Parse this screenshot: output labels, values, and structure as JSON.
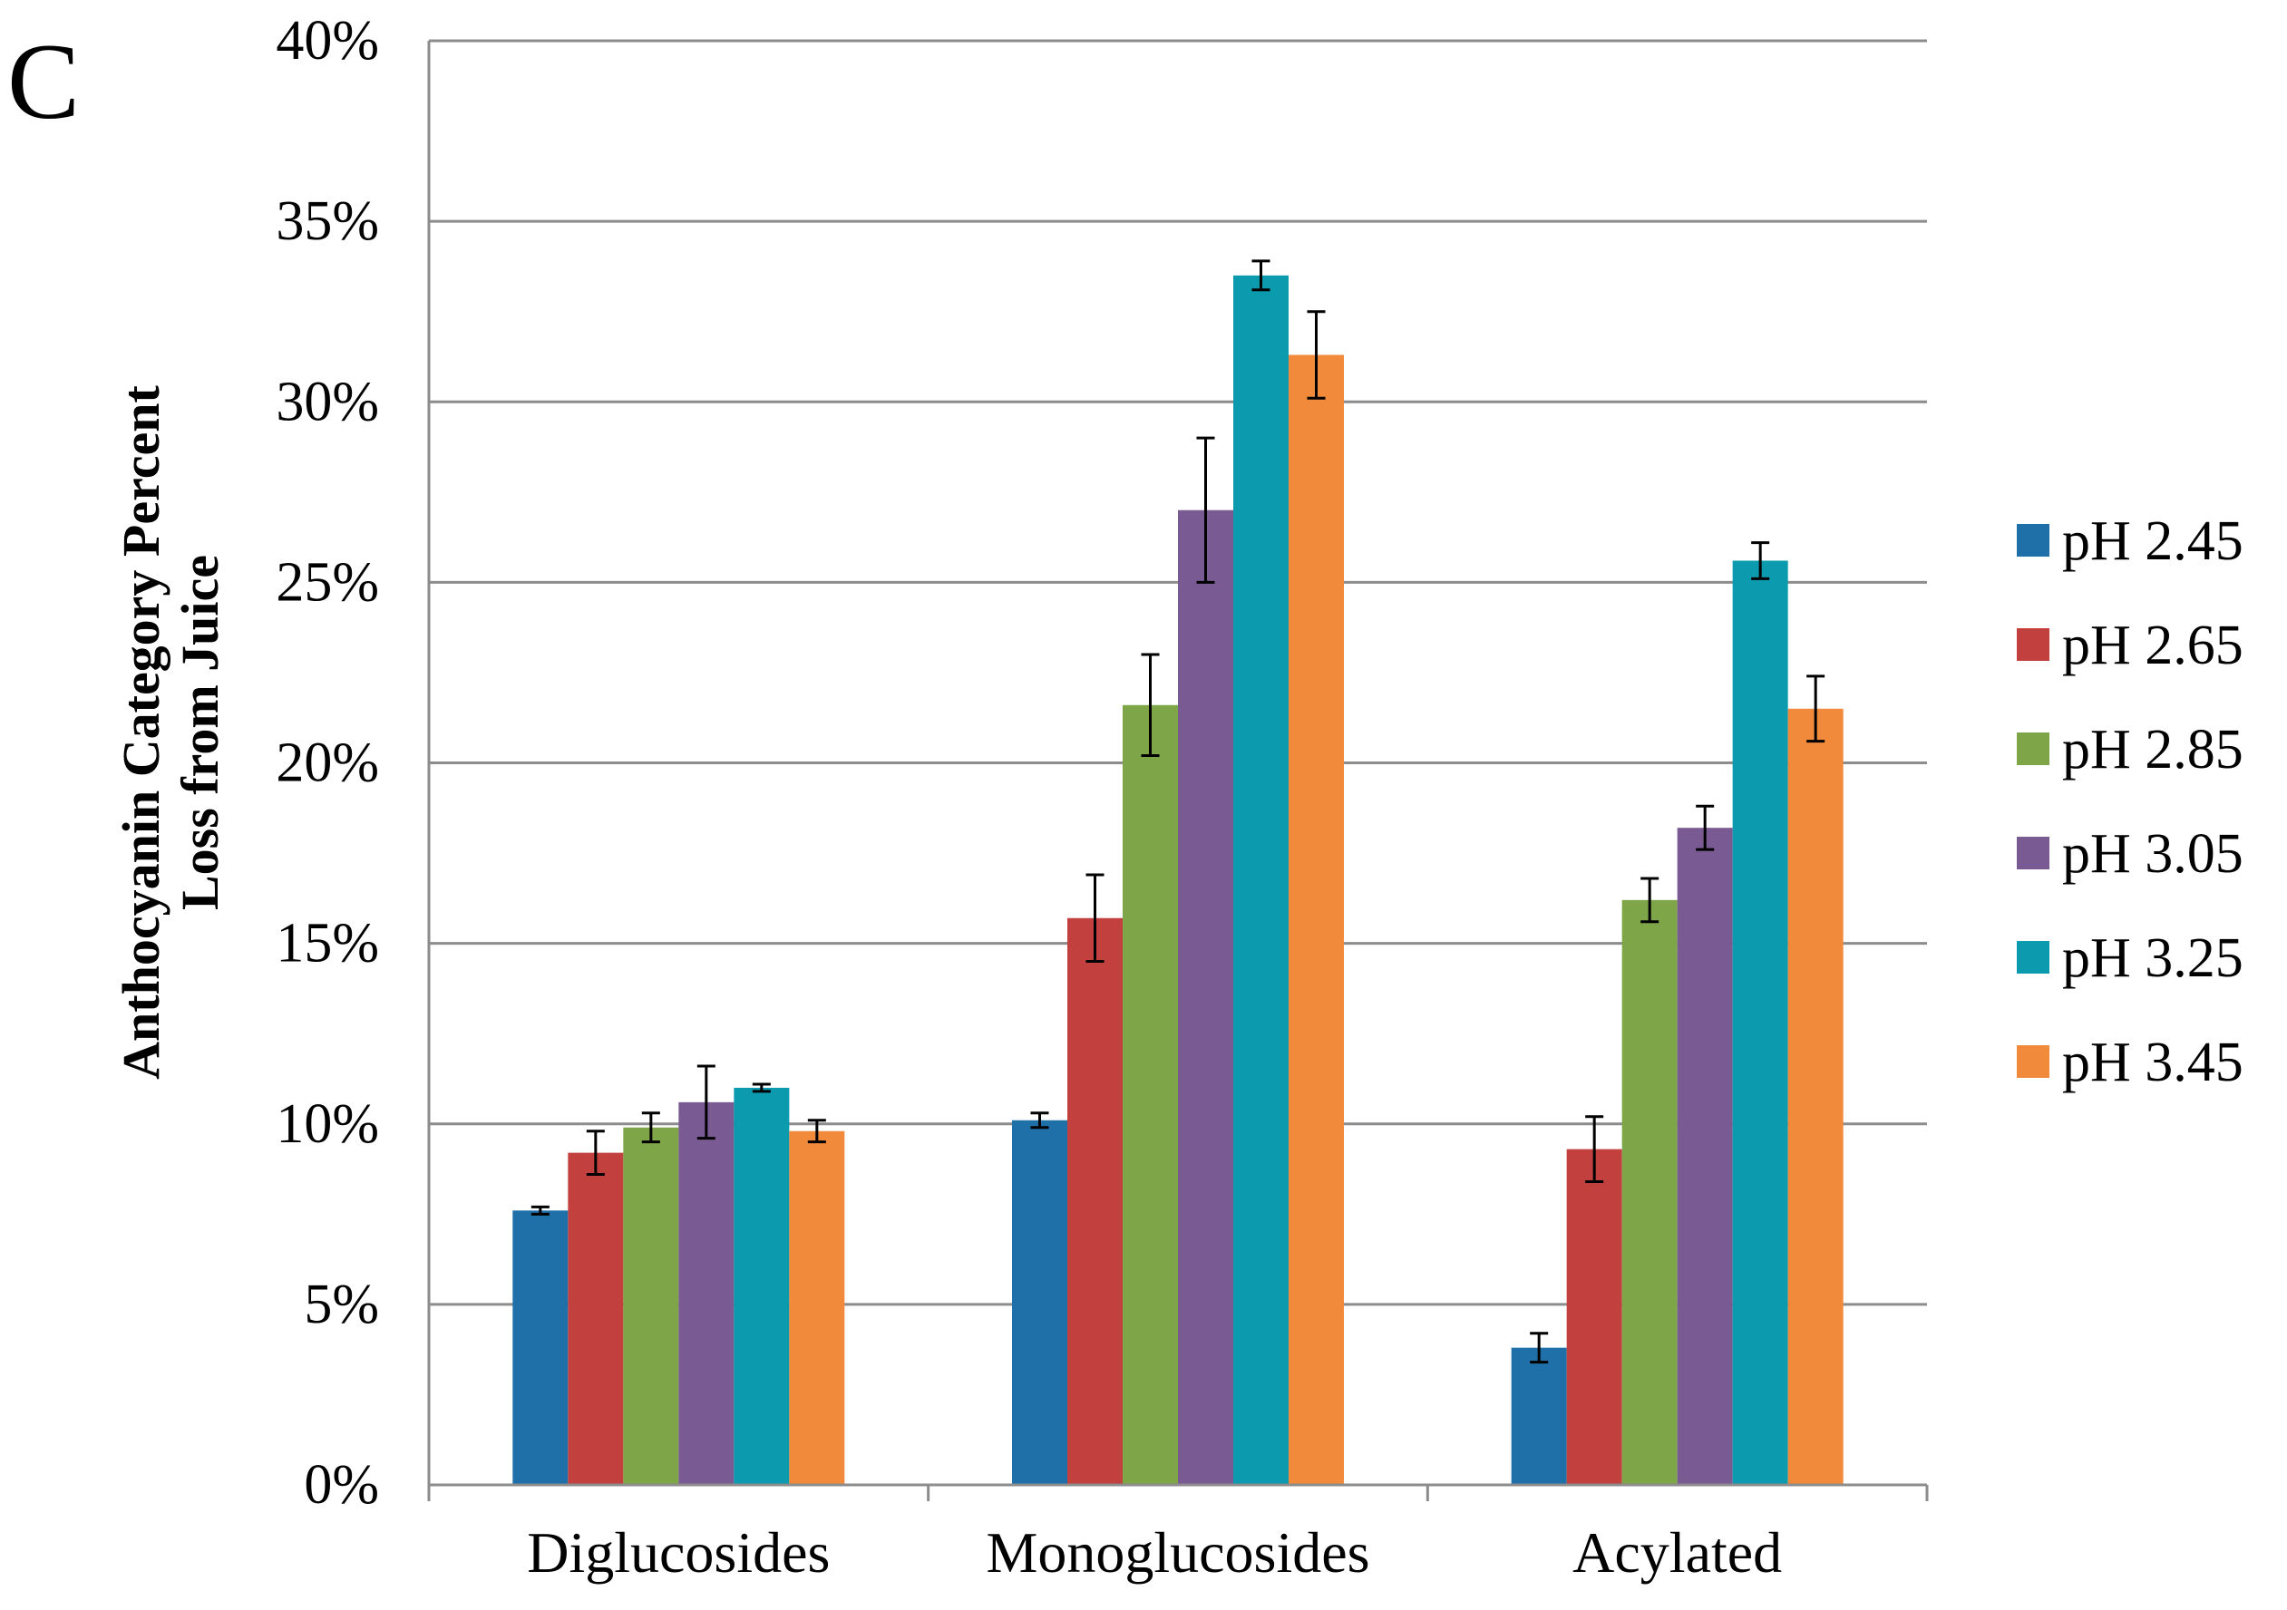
{
  "panel_letter": "C",
  "colors": {
    "series": [
      "#1F6FA8",
      "#C2413F",
      "#7EA547",
      "#7A5A93",
      "#0B9AAE",
      "#F18A3A"
    ],
    "gridline": "#8C8C8C",
    "axis": "#8C8C8C",
    "errorbar": "#000000"
  },
  "chart_data": {
    "type": "bar",
    "title": "",
    "xlabel": "",
    "ylabel_lines": [
      "Anthocyanin Category Percent",
      "Loss from Juice"
    ],
    "categories": [
      "Diglucosides",
      "Monoglucosides",
      "Acylated"
    ],
    "ylim": [
      0,
      40
    ],
    "yticks": [
      0,
      5,
      10,
      15,
      20,
      25,
      30,
      35,
      40
    ],
    "ytick_labels": [
      "0%",
      "5%",
      "10%",
      "15%",
      "20%",
      "25%",
      "30%",
      "35%",
      "40%"
    ],
    "grid": true,
    "legend_position": "right",
    "series": [
      {
        "name": "pH 2.45",
        "values": [
          7.6,
          10.1,
          3.8
        ],
        "errors": [
          0.1,
          0.2,
          0.4
        ]
      },
      {
        "name": "pH 2.65",
        "values": [
          9.2,
          15.7,
          9.3
        ],
        "errors": [
          0.6,
          1.2,
          0.9
        ]
      },
      {
        "name": "pH 2.85",
        "values": [
          9.9,
          21.6,
          16.2
        ],
        "errors": [
          0.4,
          1.4,
          0.6
        ]
      },
      {
        "name": "pH 3.05",
        "values": [
          10.6,
          27.0,
          18.2
        ],
        "errors": [
          1.0,
          2.0,
          0.6
        ]
      },
      {
        "name": "pH 3.25",
        "values": [
          11.0,
          33.5,
          25.6
        ],
        "errors": [
          0.1,
          0.4,
          0.5
        ]
      },
      {
        "name": "pH 3.45",
        "values": [
          9.8,
          31.3,
          21.5
        ],
        "errors": [
          0.3,
          1.2,
          0.9
        ]
      }
    ]
  }
}
